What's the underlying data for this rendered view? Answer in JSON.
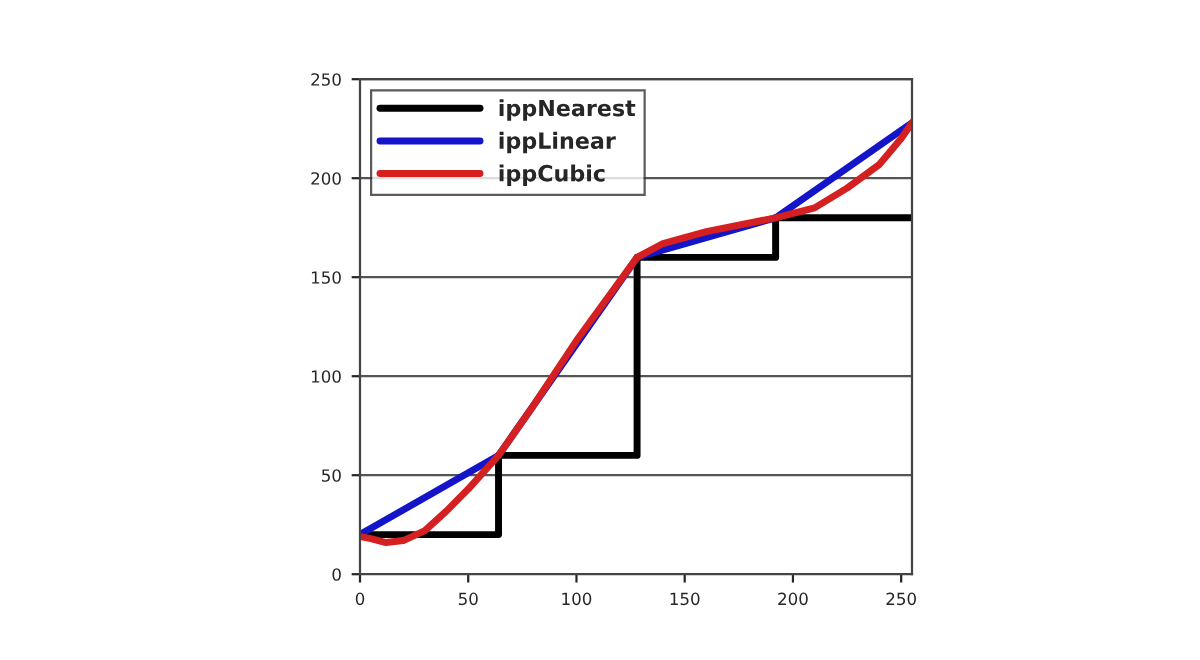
{
  "chart_data": {
    "type": "line",
    "xlim": [
      0,
      255
    ],
    "ylim": [
      0,
      250
    ],
    "xticks": [
      0,
      50,
      100,
      150,
      200,
      250
    ],
    "yticks": [
      0,
      50,
      100,
      150,
      200,
      250
    ],
    "grid": "y",
    "legend": "top left",
    "series": [
      {
        "name": "ippNearest",
        "type": "step",
        "color": "#000000",
        "x": [
          0,
          64,
          128,
          192,
          255
        ],
        "values": [
          20,
          60,
          160,
          180,
          180
        ]
      },
      {
        "name": "ippLinear",
        "color": "#1414c8",
        "x": [
          0,
          64,
          128,
          192,
          255
        ],
        "values": [
          20,
          60,
          160,
          180,
          228
        ]
      },
      {
        "name": "ippCubic",
        "color": "#d42020",
        "x": [
          0,
          5,
          12,
          20,
          30,
          40,
          50,
          64,
          80,
          100,
          128,
          140,
          160,
          192,
          210,
          225,
          240,
          250,
          255
        ],
        "values": [
          19,
          18,
          16,
          17,
          22,
          32,
          43,
          60,
          85,
          118,
          160,
          167,
          173,
          180,
          185,
          195,
          207,
          220,
          228
        ]
      }
    ]
  }
}
